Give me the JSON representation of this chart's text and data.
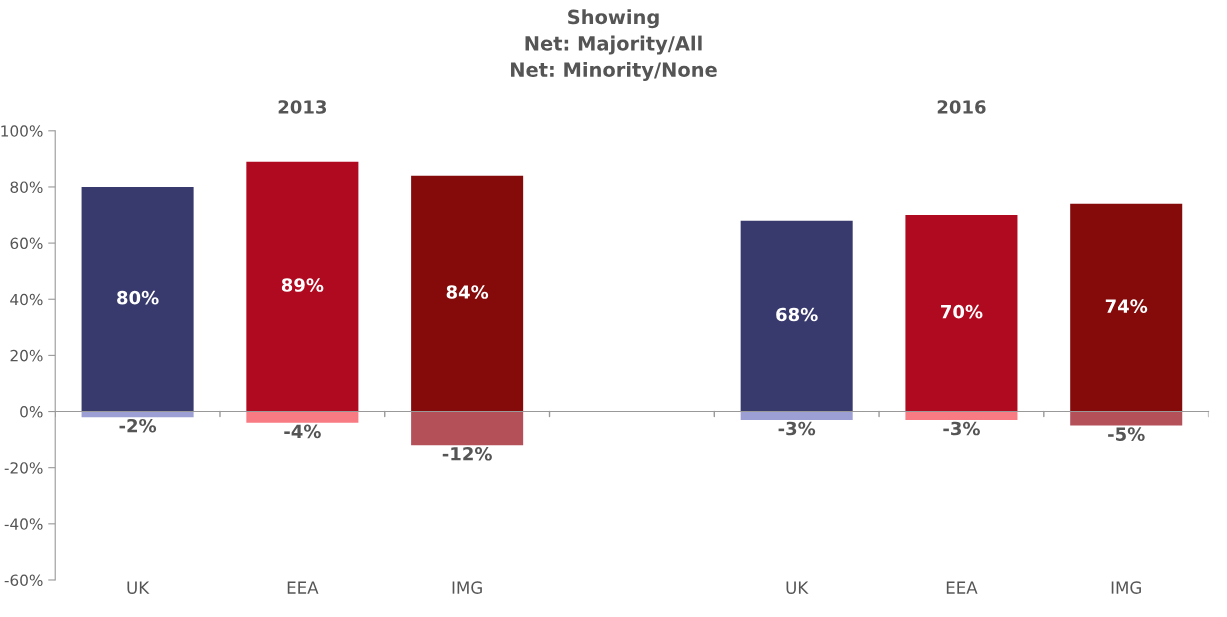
{
  "chart_data": {
    "type": "bar",
    "title": "Showing\nNet: Majority/All\nNet: Minority/None",
    "categories": [
      "UK",
      "EEA",
      "IMG",
      null,
      "UK",
      "EEA",
      "IMG"
    ],
    "series": [
      {
        "colors": [
          "#383a6e",
          "#b00a20",
          "#850a0a",
          null,
          "#383a6e",
          "#b00a20",
          "#850a0a"
        ],
        "values": [
          80,
          89,
          84,
          null,
          68,
          70,
          74
        ],
        "value_labels": [
          "80%",
          "89%",
          "84%",
          null,
          "68%",
          "70%",
          "74%"
        ]
      },
      {
        "colors": [
          "#9c9fd4",
          "#f87a82",
          "#b35058",
          null,
          "#9c9fd4",
          "#f87a82",
          "#b35058"
        ],
        "values": [
          -2,
          -4,
          -12,
          null,
          -3,
          -3,
          -5
        ],
        "value_labels": [
          "-2%",
          "-4%",
          "-12%",
          null,
          "-3%",
          "-3%",
          "-5%"
        ]
      }
    ],
    "stacked": true,
    "annotations": [
      "2013",
      "2016"
    ],
    "ylim": [
      -60,
      100
    ],
    "yticks": [
      {
        "value": -60,
        "label": "-60%"
      },
      {
        "value": -40,
        "label": "-40%"
      },
      {
        "value": -20,
        "label": "-20%"
      },
      {
        "value": 0,
        "label": "0%"
      },
      {
        "value": 20,
        "label": "20%"
      },
      {
        "value": 40,
        "label": "40%"
      },
      {
        "value": 60,
        "label": "60%"
      },
      {
        "value": 80,
        "label": "80%"
      },
      {
        "value": 100,
        "label": "100%"
      }
    ],
    "legend": false
  }
}
